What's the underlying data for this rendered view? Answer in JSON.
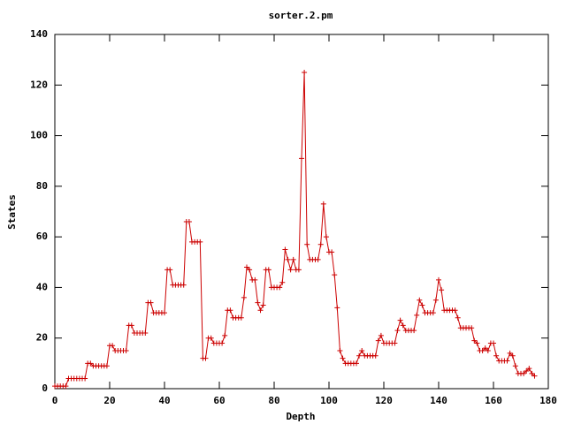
{
  "chart_data": {
    "type": "line",
    "title": "sorter.2.pm",
    "x_label": "Depth",
    "y_label": "States",
    "color": "#cc0000",
    "markers": true,
    "x": [
      0,
      1,
      2,
      3,
      4,
      5,
      6,
      7,
      8,
      9,
      10,
      11,
      12,
      13,
      14,
      15,
      16,
      17,
      18,
      19,
      20,
      21,
      22,
      23,
      24,
      25,
      26,
      27,
      28,
      29,
      30,
      31,
      32,
      33,
      34,
      35,
      36,
      37,
      38,
      39,
      40,
      41,
      42,
      43,
      44,
      45,
      46,
      47,
      48,
      49,
      50,
      51,
      52,
      53,
      54,
      55,
      56,
      57,
      58,
      59,
      60,
      61,
      62,
      63,
      64,
      65,
      66,
      67,
      68,
      69,
      70,
      71,
      72,
      73,
      74,
      75,
      76,
      77,
      78,
      79,
      80,
      81,
      82,
      83,
      84,
      85,
      86,
      87,
      88,
      89,
      90,
      91,
      92,
      93,
      94,
      95,
      96,
      97,
      98,
      99,
      100,
      101,
      102,
      103,
      104,
      105,
      106,
      107,
      108,
      109,
      110,
      111,
      112,
      113,
      114,
      115,
      116,
      117,
      118,
      119,
      120,
      121,
      122,
      123,
      124,
      125,
      126,
      127,
      128,
      129,
      130,
      131,
      132,
      133,
      134,
      135,
      136,
      137,
      138,
      139,
      140,
      141,
      142,
      143,
      144,
      145,
      146,
      147,
      148,
      149,
      150,
      151,
      152,
      153,
      154,
      155,
      156,
      157,
      158,
      159,
      160,
      161,
      162,
      163,
      164,
      165,
      166,
      167,
      168,
      169,
      170,
      171,
      172,
      173,
      174,
      175
    ],
    "values": [
      1,
      1,
      1,
      1,
      1,
      4,
      4,
      4,
      4,
      4,
      4,
      4,
      10,
      10,
      9,
      9,
      9,
      9,
      9,
      9,
      17,
      17,
      15,
      15,
      15,
      15,
      15,
      25,
      25,
      22,
      22,
      22,
      22,
      22,
      34,
      34,
      30,
      30,
      30,
      30,
      30,
      47,
      47,
      41,
      41,
      41,
      41,
      41,
      66,
      66,
      58,
      58,
      58,
      58,
      12,
      12,
      20,
      20,
      18,
      18,
      18,
      18,
      21,
      31,
      31,
      28,
      28,
      28,
      28,
      36,
      48,
      47,
      43,
      43,
      34,
      31,
      33,
      47,
      47,
      40,
      40,
      40,
      40,
      42,
      55,
      51,
      47,
      51,
      47,
      47,
      91,
      125,
      57,
      51,
      51,
      51,
      51,
      57,
      73,
      60,
      54,
      54,
      45,
      32,
      15,
      12,
      10,
      10,
      10,
      10,
      10,
      13,
      15,
      13,
      13,
      13,
      13,
      13,
      19,
      21,
      18,
      18,
      18,
      18,
      18,
      23,
      27,
      25,
      23,
      23,
      23,
      23,
      29,
      35,
      33,
      30,
      30,
      30,
      30,
      35,
      43,
      39,
      31,
      31,
      31,
      31,
      31,
      28,
      24,
      24,
      24,
      24,
      24,
      19,
      18,
      15,
      15,
      16,
      15,
      18,
      18,
      13,
      11,
      11,
      11,
      11,
      14,
      13,
      9,
      6,
      6,
      6,
      7,
      8,
      6,
      5
    ],
    "xlim": [
      0,
      180
    ],
    "xticks": [
      0,
      20,
      40,
      60,
      80,
      100,
      120,
      140,
      160,
      180
    ],
    "ylim": [
      0,
      140
    ],
    "yticks": [
      0,
      20,
      40,
      60,
      80,
      100,
      120,
      140
    ]
  }
}
